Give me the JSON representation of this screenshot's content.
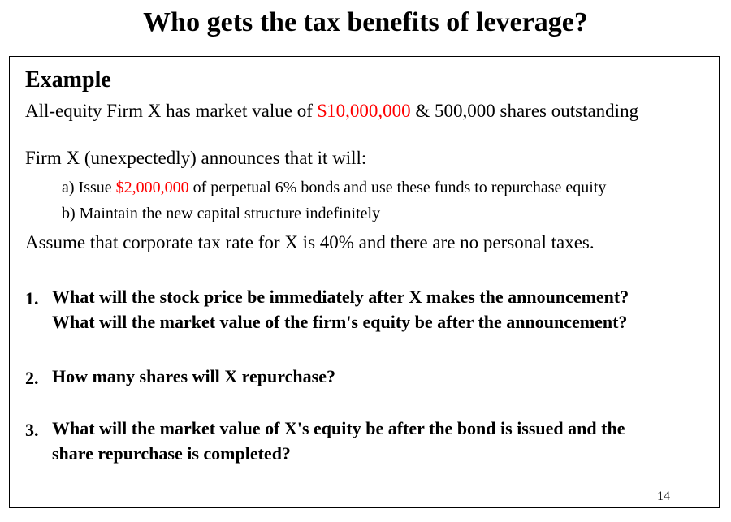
{
  "title": "Who gets the tax benefits of leverage?",
  "example": {
    "heading": "Example",
    "intro": {
      "before": "All-equity Firm X has market value of ",
      "value": "$10,000,000",
      "after": " & 500,000 shares outstanding"
    },
    "announce": "Firm X (unexpectedly) announces that it will:",
    "item_a": {
      "before": "a) Issue ",
      "value": "$2,000,000",
      "after": " of perpetual 6% bonds and use these funds to repurchase equity"
    },
    "item_b": "b) Maintain the new capital structure indefinitely",
    "assume": "Assume that corporate tax rate for X is 40% and there are no personal taxes."
  },
  "questions": [
    {
      "number": "1.",
      "lines": [
        "What will the stock price be immediately after X makes the announcement?",
        "What will the market value of the firm's equity be after the announcement?"
      ]
    },
    {
      "number": "2.",
      "lines": [
        "How many shares will X repurchase?"
      ]
    },
    {
      "number": "3.",
      "lines": [
        "What will the market value of X's equity be after the bond is issued and the",
        "share repurchase is completed?"
      ]
    }
  ],
  "page_number": "14",
  "colors": {
    "highlight": "#ff0000",
    "text": "#000000",
    "border": "#000000"
  }
}
